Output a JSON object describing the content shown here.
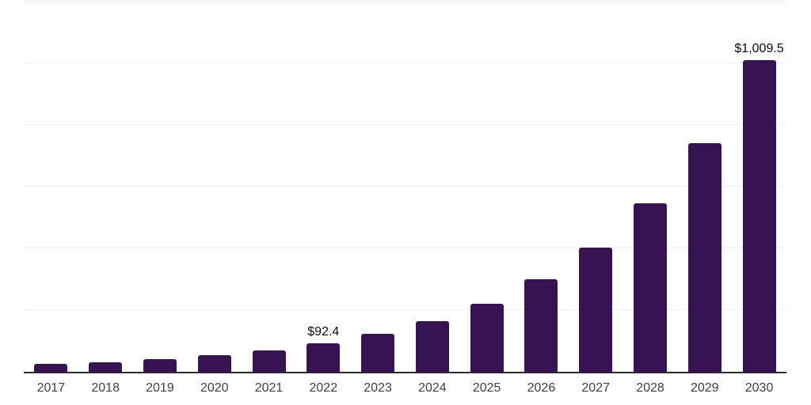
{
  "chart_data": {
    "type": "bar",
    "title": "",
    "xlabel": "",
    "ylabel": "",
    "categories": [
      "2017",
      "2018",
      "2019",
      "2020",
      "2021",
      "2022",
      "2023",
      "2024",
      "2025",
      "2026",
      "2027",
      "2028",
      "2029",
      "2030"
    ],
    "values": [
      25,
      30,
      40,
      53,
      69,
      92.4,
      124,
      165,
      221,
      300,
      403,
      546,
      740,
      1009.5
    ],
    "annotations": [
      {
        "category": "2022",
        "text": "$92.4"
      },
      {
        "category": "2030",
        "text": "$1,009.5"
      }
    ],
    "ylim": [
      0,
      1200
    ],
    "gridlines": [
      200,
      400,
      600,
      800,
      1000,
      1200
    ],
    "grid": true,
    "legend": false,
    "y_axis_tick_labels_visible": false
  },
  "colors": {
    "bar": "#371353",
    "gridline": "#ececec",
    "axis_line": "#2b2b2b",
    "tick_label": "#3f3f3f",
    "data_label": "#0a0a0a",
    "background": "#ffffff"
  }
}
